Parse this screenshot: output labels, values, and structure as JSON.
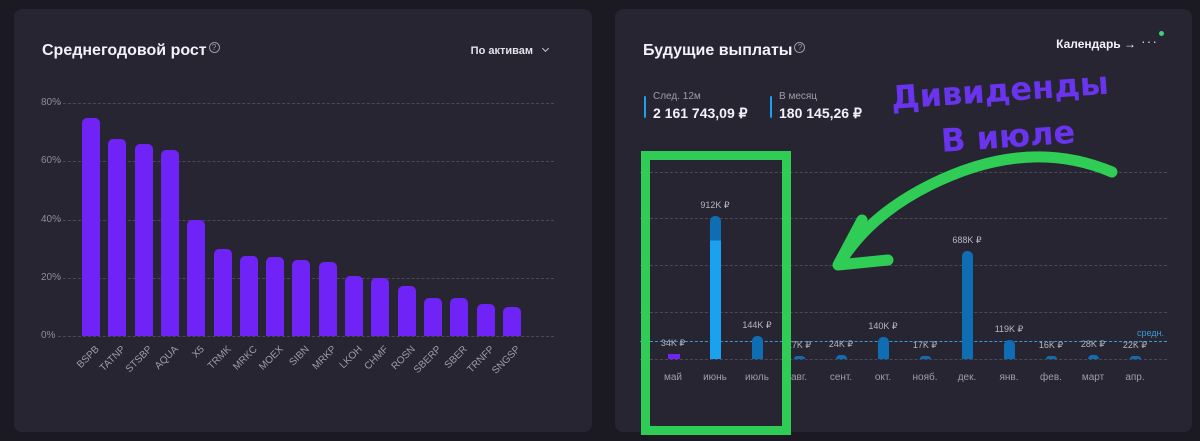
{
  "left_panel": {
    "title": "Среднегодовой рост",
    "help": "?",
    "dropdown_label": "По активам",
    "y_ticks": [
      "0%",
      "20%",
      "40%",
      "60%",
      "80%"
    ]
  },
  "right_panel": {
    "title": "Будущие выплаты",
    "help": "?",
    "calendar_link": "Календарь →",
    "more": "···",
    "stats": [
      {
        "label": "След. 12м",
        "value": "2 161 743,09 ₽"
      },
      {
        "label": "В месяц",
        "value": "180 145,26 ₽"
      }
    ],
    "avg_label": "средн."
  },
  "annotation": {
    "line1": "Дивиденды",
    "line2": "В июле",
    "colors": {
      "text": "#6a34ef",
      "highlight": "#2fcd55"
    }
  },
  "colors": {
    "background": "#1b1a23",
    "panel": "#262531",
    "growth_bar": "#7023f7",
    "payout_bar": "#0e6db3",
    "payout_bar_current": "#1aa2f0",
    "accent_dot": "#3ed07a"
  },
  "chart_data": [
    {
      "type": "bar",
      "title": "Среднегодовой рост",
      "categories": [
        "BSPB",
        "TATNP",
        "STSBP",
        "AQUA",
        "X5",
        "TRMK",
        "MRKC",
        "MOEX",
        "SIBN",
        "MRKP",
        "LKOH",
        "CHMF",
        "ROSN",
        "SBERP",
        "SBER",
        "TRNFP",
        "SNGSP"
      ],
      "values": [
        75,
        67.5,
        66,
        64,
        40,
        30,
        27.5,
        27,
        26,
        25.5,
        20.5,
        20,
        17,
        13,
        13,
        11,
        10
      ],
      "ylabel": "%",
      "ylim": [
        0,
        80
      ],
      "y_ticks": [
        0,
        20,
        40,
        60,
        80
      ],
      "grid": true
    },
    {
      "type": "bar",
      "title": "Будущие выплаты",
      "categories": [
        "май",
        "июнь",
        "июль",
        "авг.",
        "сент.",
        "окт.",
        "нояб.",
        "дек.",
        "янв.",
        "фев.",
        "март",
        "апр."
      ],
      "values": [
        34,
        912,
        144,
        17,
        24,
        140,
        17,
        688,
        119,
        16,
        28,
        22
      ],
      "value_labels": [
        "34K ₽",
        "912K ₽",
        "144K ₽",
        "17K ₽",
        "24K ₽",
        "140K ₽",
        "17K ₽",
        "688K ₽",
        "119K ₽",
        "16K ₽",
        "28K ₽",
        "22K ₽"
      ],
      "unit": "K ₽",
      "average": 180,
      "average_label": "средн.",
      "grid": true
    }
  ]
}
